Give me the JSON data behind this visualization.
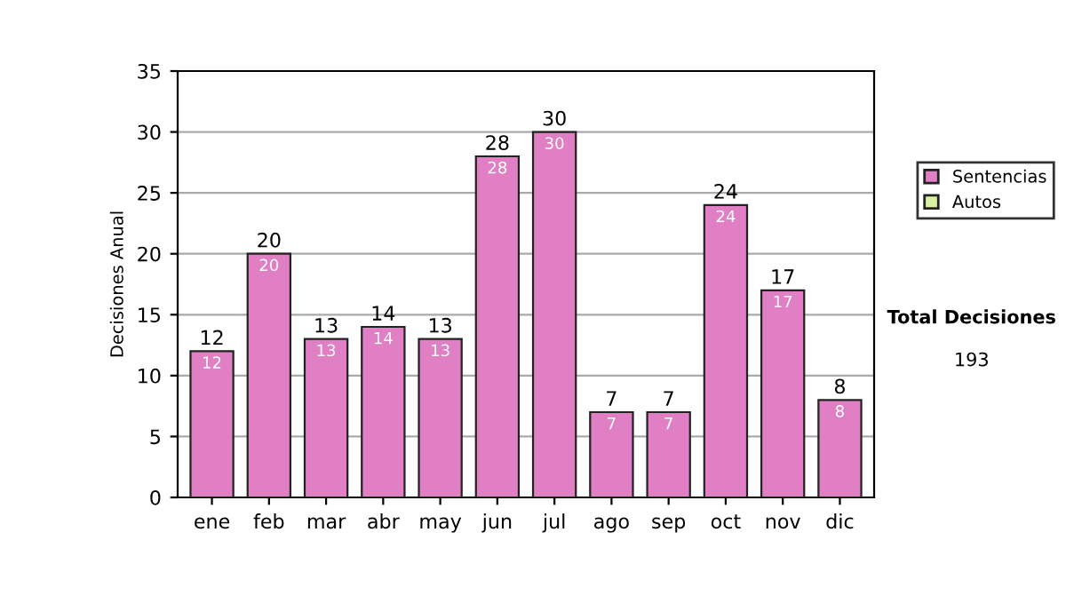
{
  "chart_data": {
    "type": "bar",
    "ylabel": "Decisiones Anual",
    "categories": [
      "ene",
      "feb",
      "mar",
      "abr",
      "may",
      "jun",
      "jul",
      "ago",
      "sep",
      "oct",
      "nov",
      "dic"
    ],
    "series": [
      {
        "name": "Sentencias",
        "color": "#e07fc4",
        "values": [
          12,
          20,
          13,
          14,
          13,
          28,
          30,
          7,
          7,
          24,
          17,
          8
        ],
        "value_labels": [
          "12",
          "20",
          "13",
          "14",
          "13",
          "28",
          "30",
          "7",
          "7",
          "24",
          "17",
          "8"
        ]
      },
      {
        "name": "Autos",
        "color": "#d9f0a0",
        "values": [
          null,
          null,
          null,
          null,
          null,
          null,
          null,
          null,
          null,
          null,
          null,
          null
        ]
      }
    ],
    "stacked": true,
    "totals": [
      "12",
      "20",
      "13",
      "14",
      "13",
      "28",
      "30",
      "7",
      "7",
      "24",
      "17",
      "8"
    ],
    "ylim": [
      0,
      35
    ],
    "yticks": [
      0,
      5,
      10,
      15,
      20,
      25,
      30,
      35
    ],
    "grid": "y",
    "legend": "right",
    "annotations": [
      "Total Decisiones",
      "193"
    ]
  }
}
